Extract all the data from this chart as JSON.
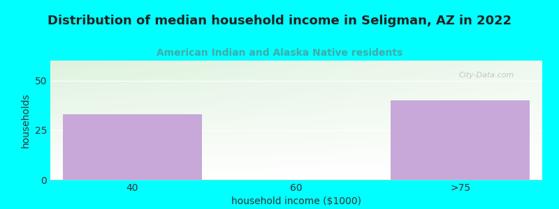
{
  "title": "Distribution of median household income in Seligman, AZ in 2022",
  "subtitle": "American Indian and Alaska Native residents",
  "xlabel": "household income ($1000)",
  "ylabel": "households",
  "categories": [
    "40",
    "60",
    ">75"
  ],
  "values": [
    33,
    0,
    40
  ],
  "bar_color": "#c8a8d8",
  "background_color": "#00ffff",
  "plot_bg_color_tl": "#ddeedd",
  "plot_bg_color_tr": "#f5fff8",
  "plot_bg_color_bl": "#eef8ee",
  "plot_bg_color_br": "#ffffff",
  "ylim": [
    0,
    60
  ],
  "yticks": [
    0,
    25,
    50
  ],
  "title_fontsize": 13,
  "subtitle_fontsize": 10,
  "subtitle_color": "#44aaaa",
  "title_color": "#222222",
  "axis_label_fontsize": 10,
  "tick_fontsize": 10,
  "watermark": "City-Data.com"
}
